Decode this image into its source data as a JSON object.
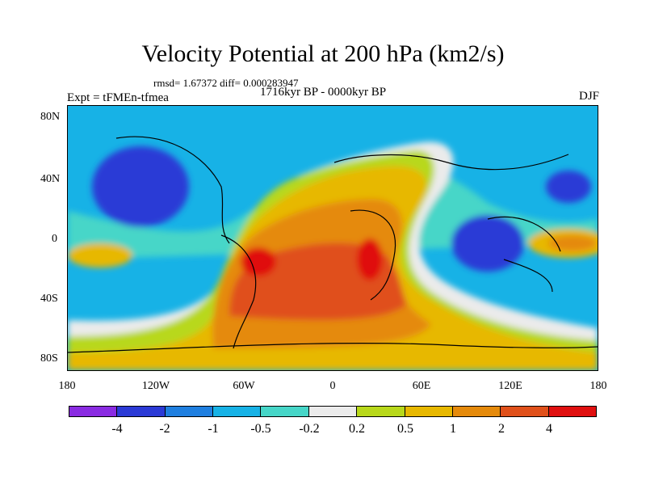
{
  "title": "Velocity Potential at 200 hPa (km2/s)",
  "stats": "rmsd= 1.67372 diff= 0.000283947",
  "period": "1716kyr BP - 0000kyr BP",
  "experiment": "Expt = tFMEn-tfmea",
  "season": "DJF",
  "y_ticks": [
    "80N",
    "40N",
    "0",
    "40S",
    "80S"
  ],
  "x_ticks": [
    "180",
    "120W",
    "60W",
    "0",
    "60E",
    "120E",
    "180"
  ],
  "colorbar": {
    "labels": [
      "-4",
      "-2",
      "-1",
      "-0.5",
      "-0.2",
      "0.2",
      "0.5",
      "1",
      "2",
      "4"
    ],
    "colors": [
      "#8a2be2",
      "#2b3ad6",
      "#1f7fe0",
      "#17b2e6",
      "#46d6c8",
      "#ebebeb",
      "#b8d81a",
      "#e7b800",
      "#e58a0b",
      "#e0501a",
      "#e01010"
    ]
  }
}
